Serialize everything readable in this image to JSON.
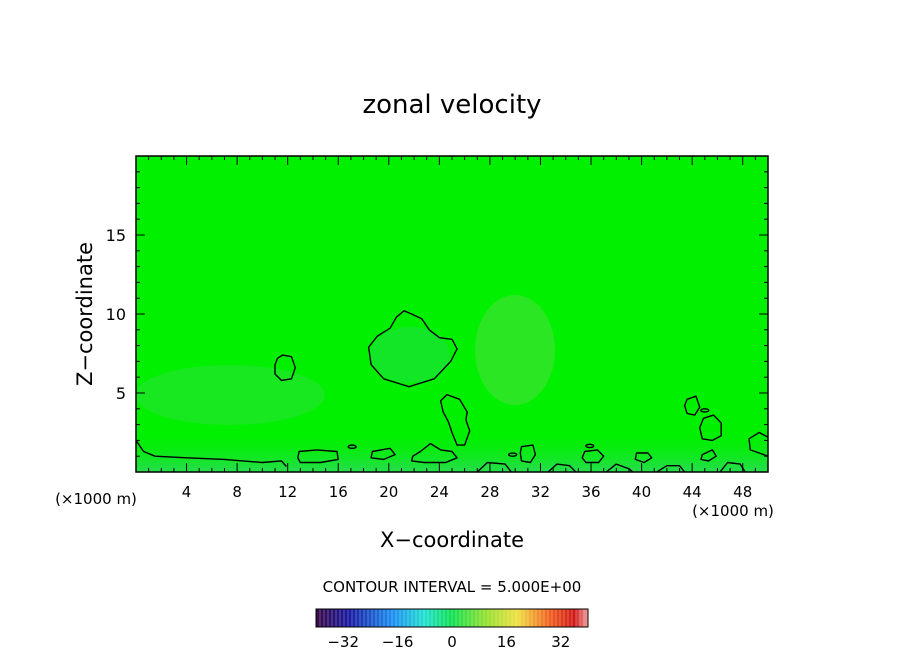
{
  "chart_data": {
    "type": "heatmap",
    "title": "zonal velocity",
    "xlabel": "X−coordinate",
    "ylabel": "Z−coordinate",
    "x_unit_label": "(×1000 m)",
    "y_unit_label": "(×1000 m)",
    "xlim": [
      0,
      50
    ],
    "ylim": [
      0,
      20
    ],
    "x_ticks": [
      4,
      8,
      12,
      16,
      20,
      24,
      28,
      32,
      36,
      40,
      44,
      48
    ],
    "y_ticks": [
      5,
      10,
      15
    ],
    "contour_interval_text": "CONTOUR INTERVAL = 5.000E+00",
    "colorbar": {
      "range": [
        -40,
        40
      ],
      "ticks": [
        -32,
        -16,
        0,
        16,
        32
      ],
      "tick_labels": [
        "−32",
        "−16",
        "0",
        "16",
        "32"
      ]
    },
    "field_background_value": 0,
    "contours": [
      {
        "name": "blob-mid",
        "points": [
          [
            21.2,
            10.2
          ],
          [
            20.6,
            9.8
          ],
          [
            20.1,
            9.1
          ],
          [
            19.1,
            8.6
          ],
          [
            18.4,
            7.9
          ],
          [
            18.6,
            6.8
          ],
          [
            19.6,
            5.9
          ],
          [
            21.6,
            5.4
          ],
          [
            23.6,
            5.9
          ],
          [
            24.9,
            7.0
          ],
          [
            25.4,
            7.8
          ],
          [
            25.0,
            8.4
          ],
          [
            24.0,
            8.5
          ],
          [
            23.2,
            9.0
          ],
          [
            22.6,
            9.7
          ],
          [
            21.8,
            10.0
          ]
        ]
      },
      {
        "name": "small-12",
        "points": [
          [
            11.2,
            7.2
          ],
          [
            11.6,
            7.4
          ],
          [
            12.3,
            7.3
          ],
          [
            12.6,
            6.6
          ],
          [
            12.3,
            5.9
          ],
          [
            11.5,
            5.8
          ],
          [
            11.0,
            6.2
          ],
          [
            11.0,
            6.8
          ]
        ]
      },
      {
        "name": "blob-25",
        "points": [
          [
            24.6,
            4.9
          ],
          [
            25.6,
            4.6
          ],
          [
            26.2,
            3.8
          ],
          [
            26.1,
            3.3
          ],
          [
            26.4,
            2.6
          ],
          [
            26.0,
            1.7
          ],
          [
            25.4,
            1.7
          ],
          [
            25.0,
            2.5
          ],
          [
            24.7,
            3.2
          ],
          [
            24.3,
            3.8
          ],
          [
            24.1,
            4.5
          ]
        ]
      },
      {
        "name": "small-44",
        "points": [
          [
            43.6,
            4.6
          ],
          [
            44.3,
            4.8
          ],
          [
            44.6,
            4.1
          ],
          [
            44.2,
            3.6
          ],
          [
            43.6,
            3.7
          ],
          [
            43.4,
            4.2
          ]
        ]
      },
      {
        "name": "small-45",
        "points": [
          [
            44.9,
            3.4
          ],
          [
            45.7,
            3.6
          ],
          [
            46.3,
            3.1
          ],
          [
            46.3,
            2.3
          ],
          [
            45.6,
            2.0
          ],
          [
            44.8,
            2.1
          ],
          [
            44.6,
            2.8
          ]
        ]
      },
      {
        "name": "bottom-left",
        "open": true,
        "points": [
          [
            0.0,
            2.0
          ],
          [
            0.6,
            1.3
          ],
          [
            1.5,
            1.0
          ],
          [
            4.0,
            0.9
          ],
          [
            7.0,
            0.8
          ],
          [
            10.0,
            0.6
          ],
          [
            11.5,
            0.7
          ],
          [
            11.9,
            0.35
          ]
        ]
      },
      {
        "name": "blob-13",
        "points": [
          [
            12.9,
            1.3
          ],
          [
            14.3,
            1.4
          ],
          [
            15.9,
            1.3
          ],
          [
            16.0,
            0.8
          ],
          [
            14.6,
            0.6
          ],
          [
            13.0,
            0.6
          ],
          [
            12.8,
            0.9
          ]
        ]
      },
      {
        "name": "blob-24",
        "points": [
          [
            21.9,
            1.0
          ],
          [
            22.5,
            1.3
          ],
          [
            23.3,
            1.8
          ],
          [
            24.1,
            1.4
          ],
          [
            25.0,
            1.3
          ],
          [
            25.4,
            0.9
          ],
          [
            24.5,
            0.6
          ],
          [
            22.8,
            0.6
          ],
          [
            21.8,
            0.7
          ]
        ]
      },
      {
        "name": "blob-19",
        "points": [
          [
            18.7,
            1.3
          ],
          [
            20.1,
            1.5
          ],
          [
            20.5,
            1.1
          ],
          [
            19.6,
            0.8
          ],
          [
            18.6,
            0.9
          ]
        ]
      },
      {
        "name": "blob-30",
        "points": [
          [
            30.5,
            1.6
          ],
          [
            31.4,
            1.7
          ],
          [
            31.6,
            1.1
          ],
          [
            31.2,
            0.6
          ],
          [
            30.5,
            0.7
          ],
          [
            30.4,
            1.2
          ]
        ]
      },
      {
        "name": "blob-36",
        "points": [
          [
            35.5,
            1.3
          ],
          [
            36.5,
            1.4
          ],
          [
            37.0,
            1.0
          ],
          [
            36.6,
            0.6
          ],
          [
            35.6,
            0.6
          ],
          [
            35.3,
            0.9
          ]
        ]
      },
      {
        "name": "blob-40",
        "points": [
          [
            39.6,
            1.2
          ],
          [
            40.5,
            1.2
          ],
          [
            40.8,
            0.9
          ],
          [
            40.2,
            0.6
          ],
          [
            39.5,
            0.8
          ]
        ]
      },
      {
        "name": "blob-45-low",
        "points": [
          [
            44.8,
            1.1
          ],
          [
            45.6,
            1.4
          ],
          [
            45.9,
            1.0
          ],
          [
            45.3,
            0.7
          ],
          [
            44.7,
            0.8
          ]
        ]
      },
      {
        "name": "right-edge",
        "open": true,
        "points": [
          [
            50.0,
            2.2
          ],
          [
            49.3,
            2.5
          ],
          [
            48.5,
            2.1
          ],
          [
            48.6,
            1.4
          ],
          [
            49.3,
            1.2
          ],
          [
            50.0,
            1.0
          ]
        ]
      },
      {
        "name": "bottom-dip-29",
        "open": true,
        "points": [
          [
            27.0,
            0.0
          ],
          [
            27.8,
            0.6
          ],
          [
            29.2,
            0.5
          ],
          [
            29.7,
            0.0
          ]
        ]
      },
      {
        "name": "bottom-dip-33",
        "open": true,
        "points": [
          [
            32.6,
            0.0
          ],
          [
            33.3,
            0.5
          ],
          [
            34.3,
            0.4
          ],
          [
            34.8,
            0.0
          ]
        ]
      },
      {
        "name": "bottom-dip-37",
        "open": true,
        "points": [
          [
            37.2,
            0.0
          ],
          [
            38.0,
            0.5
          ],
          [
            39.0,
            0.2
          ],
          [
            39.3,
            0.0
          ]
        ]
      },
      {
        "name": "bottom-dip-42",
        "open": true,
        "points": [
          [
            41.2,
            0.0
          ],
          [
            42.0,
            0.4
          ],
          [
            43.0,
            0.4
          ],
          [
            43.4,
            0.0
          ]
        ]
      },
      {
        "name": "bottom-dip-47",
        "open": true,
        "points": [
          [
            46.2,
            0.0
          ],
          [
            46.8,
            0.6
          ],
          [
            47.8,
            0.5
          ],
          [
            48.2,
            0.0
          ]
        ]
      }
    ],
    "tiny_contours": [
      {
        "name": "dot-17",
        "center": [
          17.1,
          1.6
        ]
      },
      {
        "name": "dot-29",
        "center": [
          29.8,
          1.1
        ]
      },
      {
        "name": "dot-36",
        "center": [
          35.9,
          1.65
        ]
      },
      {
        "name": "dot-45",
        "center": [
          45.0,
          3.9
        ]
      }
    ]
  }
}
